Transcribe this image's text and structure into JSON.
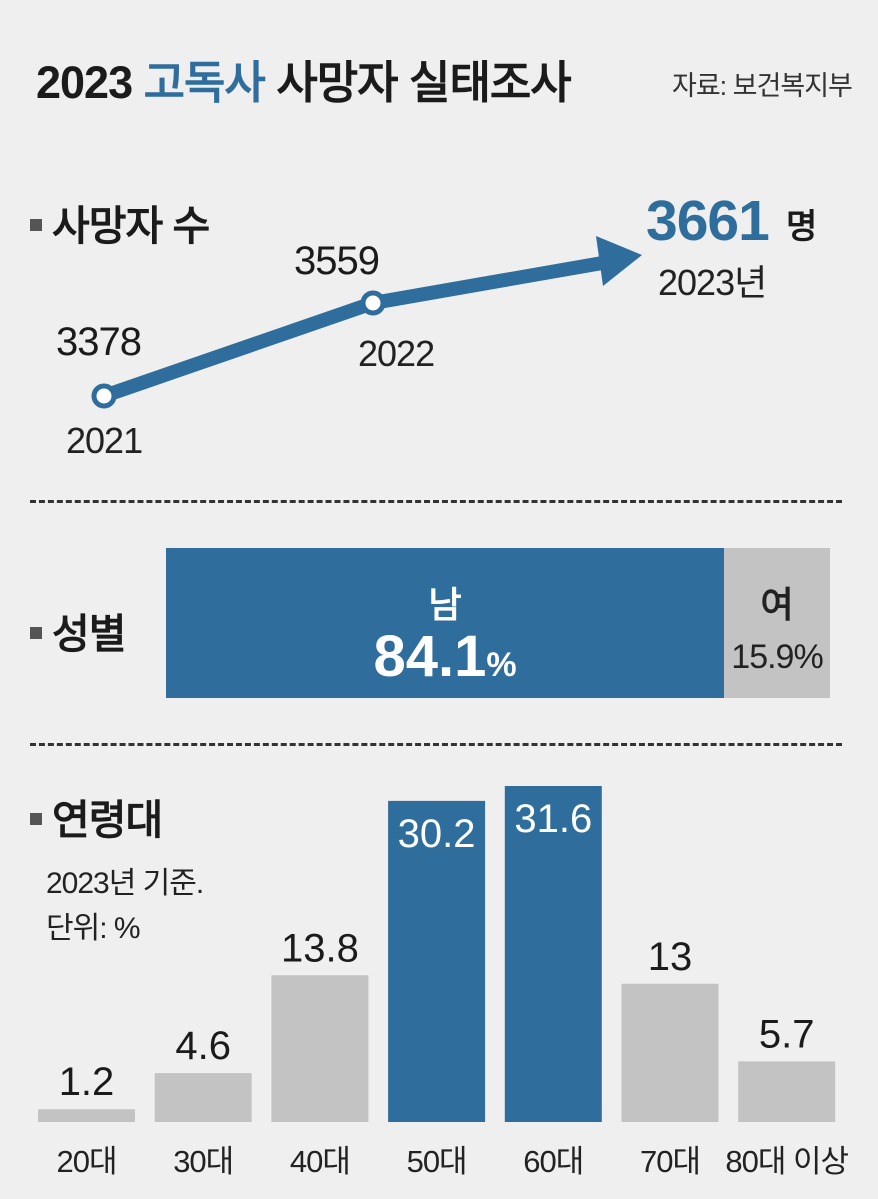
{
  "title": {
    "prefix": "2023",
    "highlight": "고독사",
    "suffix": "사망자 실태조사"
  },
  "source": "자료: 보건복지부",
  "colors": {
    "accent": "#2f6e9c",
    "gray": "#c3c3c4",
    "background": "#efefef"
  },
  "sections": {
    "deaths": "사망자 수",
    "gender": "성별",
    "age": "연령대"
  },
  "chart_data": [
    {
      "type": "line",
      "title": "사망자 수",
      "unit": "명",
      "x": [
        "2021",
        "2022",
        "2023년"
      ],
      "values": [
        "3378",
        "3559",
        "3661"
      ]
    },
    {
      "type": "bar",
      "title": "성별",
      "categories": [
        "남",
        "여"
      ],
      "values": [
        84.1,
        15.9
      ],
      "value_labels": [
        "84.1",
        "15.9%"
      ],
      "unit": "%"
    },
    {
      "type": "bar",
      "title": "연령대",
      "note_lines": [
        "2023년 기준.",
        "단위: %"
      ],
      "categories": [
        "20대",
        "30대",
        "40대",
        "50대",
        "60대",
        "70대",
        "80대 이상"
      ],
      "values": [
        1.2,
        4.6,
        13.8,
        30.2,
        31.6,
        13,
        5.7
      ],
      "value_labels": [
        "1.2",
        "4.6",
        "13.8",
        "30.2",
        "31.6",
        "13",
        "5.7"
      ],
      "highlight": [
        false,
        false,
        false,
        true,
        true,
        false,
        false
      ],
      "ylim": [
        0,
        31.6
      ]
    }
  ]
}
